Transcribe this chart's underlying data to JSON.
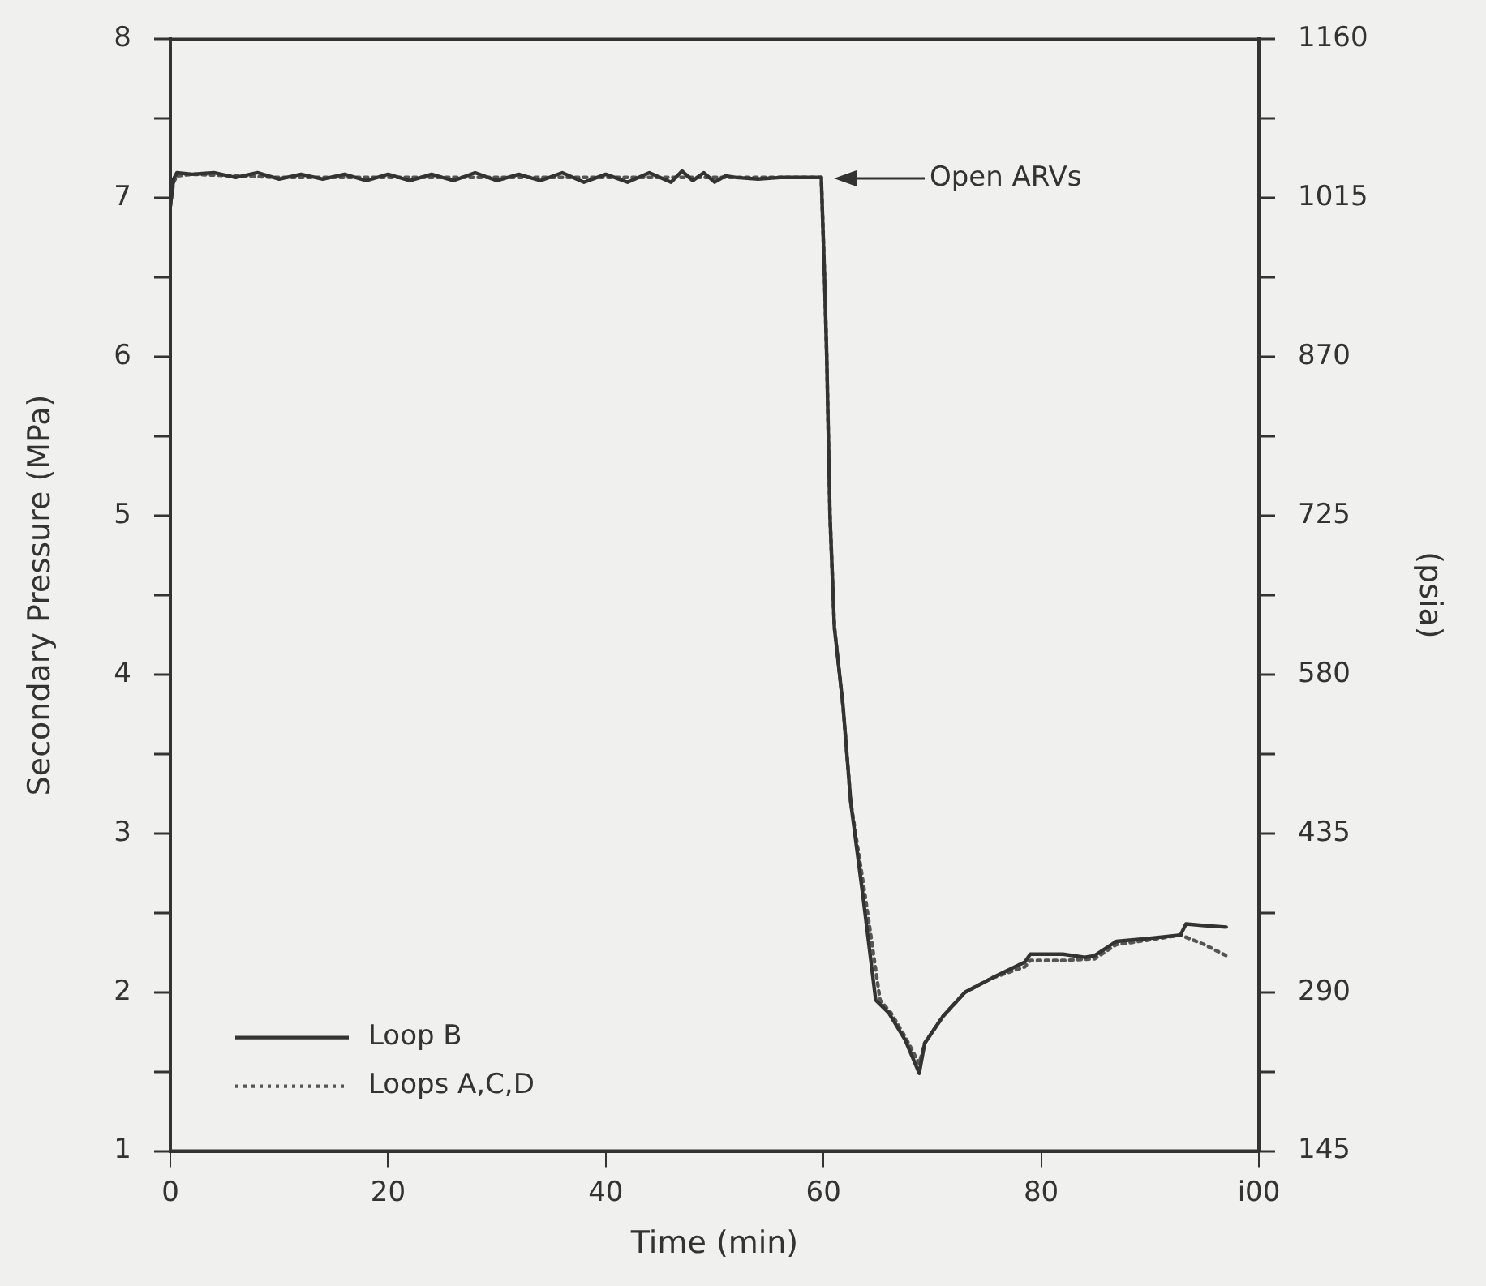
{
  "chart_data": {
    "type": "line",
    "xlabel": "Time (min)",
    "ylabel": "Secondary Pressure (MPa)",
    "y2label": "(psia)",
    "xlim": [
      0,
      100
    ],
    "xticks": [
      0,
      20,
      40,
      60,
      80,
      {
        "value": 100,
        "label": "i00"
      }
    ],
    "ylim": [
      1,
      8
    ],
    "yticks": [
      1,
      {
        "value": 1.5,
        "label": null
      },
      2,
      {
        "value": 2.5,
        "label": null
      },
      3,
      {
        "value": 3.5,
        "label": null
      },
      4,
      {
        "value": 4.5,
        "label": null
      },
      5,
      {
        "value": 5.5,
        "label": null
      },
      6,
      {
        "value": 6.5,
        "label": null
      },
      7,
      {
        "value": 7.5,
        "label": null
      },
      8
    ],
    "y2lim": [
      145,
      1160
    ],
    "y2ticks": [
      {
        "value": 145,
        "label": "145"
      },
      {
        "value": 217.5,
        "label": null
      },
      290,
      {
        "value": 362.5,
        "label": null
      },
      435,
      {
        "value": 507.5,
        "label": null
      },
      580,
      {
        "value": 652.5,
        "label": null
      },
      725,
      {
        "value": 797.5,
        "label": null
      },
      870,
      {
        "value": 942.5,
        "label": null
      },
      1015,
      {
        "value": 1087.5,
        "label": null
      },
      {
        "value": 1160,
        "label": "1160"
      }
    ],
    "grid": false,
    "legend": "bottom left",
    "marker": "none",
    "annotations": [
      "Open ARVs"
    ],
    "series": [
      {
        "name": "Loop B",
        "color": "#333333",
        "line_style": "solid",
        "x": [
          0,
          0.3,
          0.6,
          2,
          4,
          6,
          8,
          10,
          12,
          14,
          16,
          18,
          20,
          22,
          24,
          26,
          28,
          30,
          32,
          34,
          36,
          38,
          40,
          42,
          44,
          46,
          47,
          48,
          49,
          50,
          51,
          52,
          54,
          56,
          59.8,
          60.1,
          60.3,
          60.6,
          61,
          61.8,
          62.5,
          63.6,
          64.8,
          66,
          67.5,
          68.8,
          69.3,
          71,
          73,
          75.5,
          78.5,
          79,
          82,
          84,
          84.9,
          86.9,
          90,
          92.8,
          93.3,
          95,
          97
        ],
        "values": [
          6.95,
          7.12,
          7.16,
          7.15,
          7.16,
          7.13,
          7.16,
          7.12,
          7.15,
          7.12,
          7.15,
          7.11,
          7.15,
          7.11,
          7.15,
          7.11,
          7.16,
          7.11,
          7.15,
          7.11,
          7.16,
          7.1,
          7.15,
          7.1,
          7.16,
          7.1,
          7.17,
          7.11,
          7.16,
          7.1,
          7.14,
          7.13,
          7.12,
          7.13,
          7.13,
          6.5,
          6.0,
          5.0,
          4.3,
          3.8,
          3.2,
          2.62,
          1.95,
          1.87,
          1.7,
          1.49,
          1.68,
          1.85,
          2.0,
          2.09,
          2.19,
          2.24,
          2.24,
          2.22,
          2.23,
          2.32,
          2.34,
          2.36,
          2.43,
          2.42,
          2.41
        ]
      },
      {
        "name": "Loops A,C,D",
        "color": "#555555",
        "line_style": "dotted",
        "x": [
          0,
          0.3,
          0.6,
          2,
          6,
          10,
          20,
          30,
          40,
          50,
          56,
          59.8,
          60.1,
          60.3,
          60.6,
          61,
          61.8,
          62.5,
          63.8,
          65.2,
          66.2,
          67.5,
          68.8,
          69.3,
          71,
          73,
          75.5,
          78.5,
          79,
          82,
          84.9,
          86.9,
          90,
          92.8,
          95,
          97
        ],
        "values": [
          6.95,
          7.1,
          7.14,
          7.15,
          7.14,
          7.13,
          7.13,
          7.13,
          7.13,
          7.13,
          7.13,
          7.13,
          6.5,
          6.0,
          5.0,
          4.3,
          3.8,
          3.2,
          2.62,
          1.95,
          1.87,
          1.72,
          1.55,
          1.68,
          1.85,
          2.0,
          2.09,
          2.16,
          2.2,
          2.2,
          2.21,
          2.3,
          2.33,
          2.36,
          2.3,
          2.23
        ]
      }
    ]
  }
}
